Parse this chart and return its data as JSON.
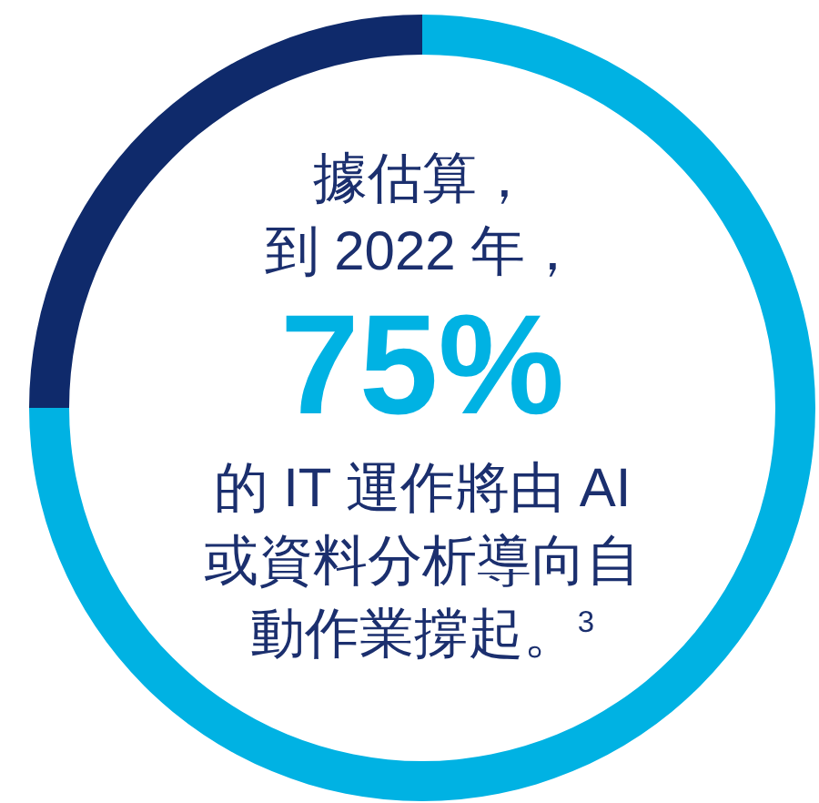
{
  "chart_data": {
    "type": "donut",
    "categories": [
      null,
      null
    ],
    "values": [
      75,
      25
    ],
    "colors": [
      "#00b2e3",
      "#0f2a6b"
    ],
    "annotations": [
      "據估算，",
      "到 2022 年，",
      "75%",
      "的 IT 運作將由 AI",
      "或資料分析導向自",
      "動作業撐起。$^{3}$"
    ]
  }
}
